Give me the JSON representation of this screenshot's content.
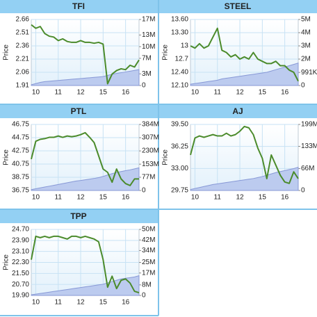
{
  "chart_data": [
    {
      "type": "line",
      "title": "TFI",
      "y_label": "Price",
      "grid": true,
      "x": [
        -0.2,
        0,
        0.2,
        0.4,
        0.6,
        0.8,
        1,
        1.2,
        1.4,
        1.6,
        1.8,
        2,
        2.2,
        2.4,
        2.6,
        2.8,
        3,
        3.2,
        3.4,
        3.6,
        3.8,
        4,
        4.2,
        4.4,
        4.6
      ],
      "xlim": [
        -0.2,
        4.6
      ],
      "xticks": [
        {
          "value": 0,
          "label": "10"
        },
        {
          "value": 1,
          "label": "11"
        },
        {
          "value": 2,
          "label": "12"
        },
        {
          "value": 3,
          "label": "15"
        },
        {
          "value": 4,
          "label": "16"
        }
      ],
      "ylim": [
        1.91,
        2.66
      ],
      "yticks": [
        1.91,
        2.06,
        2.21,
        2.36,
        2.51,
        2.66
      ],
      "y2lim": [
        0,
        17000000
      ],
      "y2ticks": [
        0,
        {
          "value": 3000000,
          "label": "3M"
        },
        {
          "value": 7000000,
          "label": "7M"
        },
        {
          "value": 10000000,
          "label": "10M"
        },
        {
          "value": 13000000,
          "label": "13M"
        },
        {
          "value": 17000000,
          "label": "17M"
        }
      ],
      "series": [
        {
          "color": "#4b8b2b",
          "values": [
            2.6,
            2.56,
            2.58,
            2.5,
            2.47,
            2.46,
            2.42,
            2.44,
            2.41,
            2.4,
            2.4,
            2.42,
            2.4,
            2.4,
            2.39,
            2.4,
            2.38,
            1.93,
            2.04,
            2.08,
            2.1,
            2.09,
            2.14,
            2.12,
            2.2
          ]
        },
        {
          "color": "#bccbef",
          "axis": "y2",
          "values": [
            200000,
            500000,
            800000,
            1000000,
            1100000,
            1200000,
            1300000,
            1400000,
            1500000,
            1600000,
            1700000,
            1800000,
            1900000,
            2000000,
            2100000,
            2200000,
            2300000,
            2600000,
            2900000,
            3100000,
            3300000,
            3500000,
            3700000,
            3900000,
            4100000
          ]
        }
      ]
    },
    {
      "type": "line",
      "title": "STEEL",
      "y_label": "Price",
      "grid": true,
      "x": [
        -0.2,
        0,
        0.2,
        0.4,
        0.6,
        0.8,
        1,
        1.2,
        1.4,
        1.6,
        1.8,
        2,
        2.2,
        2.4,
        2.6,
        2.8,
        3,
        3.2,
        3.4,
        3.6,
        3.8,
        4,
        4.2,
        4.4,
        4.6
      ],
      "xlim": [
        -0.2,
        4.6
      ],
      "xticks": [
        {
          "value": 0,
          "label": "10"
        },
        {
          "value": 1,
          "label": "11"
        },
        {
          "value": 2,
          "label": "12"
        },
        {
          "value": 3,
          "label": "15"
        },
        {
          "value": 4,
          "label": "16"
        }
      ],
      "ylim": [
        12.1,
        13.6
      ],
      "yticks": [
        {
          "value": 12.1,
          "label": "12.10"
        },
        {
          "value": 12.4,
          "label": "12.40"
        },
        12.7,
        13,
        {
          "value": 13.3,
          "label": "13.30"
        },
        {
          "value": 13.6,
          "label": "13.60"
        }
      ],
      "y2lim": [
        0,
        5000000
      ],
      "y2ticks": [
        0,
        {
          "value": 991000,
          "label": "991K"
        },
        {
          "value": 2000000,
          "label": "2M"
        },
        {
          "value": 3000000,
          "label": "3M"
        },
        {
          "value": 4000000,
          "label": "4M"
        },
        {
          "value": 5000000,
          "label": "5M"
        }
      ],
      "series": [
        {
          "color": "#4b8b2b",
          "values": [
            13.0,
            12.95,
            13.05,
            12.95,
            13.0,
            13.2,
            13.4,
            12.9,
            12.85,
            12.75,
            12.8,
            12.7,
            12.75,
            12.7,
            12.85,
            12.7,
            12.65,
            12.6,
            12.6,
            12.65,
            12.55,
            12.55,
            12.45,
            12.4,
            12.2
          ]
        },
        {
          "color": "#bccbef",
          "axis": "y2",
          "values": [
            100000,
            150000,
            200000,
            250000,
            300000,
            350000,
            400000,
            500000,
            550000,
            600000,
            650000,
            700000,
            750000,
            800000,
            850000,
            900000,
            950000,
            1000000,
            1100000,
            1200000,
            1300000,
            1400000,
            1500000,
            1600000,
            1700000
          ]
        }
      ]
    },
    {
      "type": "line",
      "title": "PTL",
      "y_label": "Price",
      "grid": true,
      "x": [
        -0.2,
        0,
        0.2,
        0.4,
        0.6,
        0.8,
        1,
        1.2,
        1.4,
        1.6,
        1.8,
        2,
        2.2,
        2.4,
        2.6,
        2.8,
        3,
        3.2,
        3.4,
        3.6,
        3.8,
        4,
        4.2,
        4.4,
        4.6
      ],
      "xlim": [
        -0.2,
        4.6
      ],
      "xticks": [
        {
          "value": 0,
          "label": "10"
        },
        {
          "value": 1,
          "label": "11"
        },
        {
          "value": 2,
          "label": "12"
        },
        {
          "value": 3,
          "label": "15"
        },
        {
          "value": 4,
          "label": "16"
        }
      ],
      "ylim": [
        36.75,
        46.75
      ],
      "yticks": [
        36.75,
        38.75,
        40.75,
        42.75,
        44.75,
        46.75
      ],
      "y2lim": [
        0,
        384000000
      ],
      "y2ticks": [
        0,
        {
          "value": 77000000,
          "label": "77M"
        },
        {
          "value": 153000000,
          "label": "153M"
        },
        {
          "value": 230000000,
          "label": "230M"
        },
        {
          "value": 307000000,
          "label": "307M"
        },
        {
          "value": 384000000,
          "label": "384M"
        }
      ],
      "series": [
        {
          "color": "#4b8b2b",
          "values": [
            41.5,
            44.2,
            44.5,
            44.6,
            44.8,
            44.8,
            45.0,
            44.8,
            45.0,
            44.9,
            45.0,
            45.2,
            45.5,
            44.8,
            44.0,
            42.0,
            40.0,
            39.5,
            38.0,
            40.0,
            38.5,
            37.8,
            37.5,
            38.5,
            38.5
          ]
        },
        {
          "color": "#bccbef",
          "axis": "y2",
          "values": [
            5000000,
            10000000,
            15000000,
            20000000,
            25000000,
            30000000,
            35000000,
            40000000,
            45000000,
            50000000,
            55000000,
            58000000,
            62000000,
            66000000,
            70000000,
            75000000,
            82000000,
            90000000,
            98000000,
            105000000,
            110000000,
            115000000,
            120000000,
            126000000,
            132000000
          ]
        }
      ]
    },
    {
      "type": "line",
      "title": "AJ",
      "y_label": "Price",
      "grid": true,
      "x": [
        -0.2,
        0,
        0.2,
        0.4,
        0.6,
        0.8,
        1,
        1.2,
        1.4,
        1.6,
        1.8,
        2,
        2.2,
        2.4,
        2.6,
        2.8,
        3,
        3.2,
        3.4,
        3.6,
        3.8,
        4,
        4.2,
        4.4,
        4.6
      ],
      "xlim": [
        -0.2,
        4.6
      ],
      "xticks": [
        {
          "value": 0,
          "label": "10"
        },
        {
          "value": 1,
          "label": "11"
        },
        {
          "value": 2,
          "label": "12"
        },
        {
          "value": 3,
          "label": "15"
        },
        {
          "value": 4,
          "label": "16"
        }
      ],
      "ylim": [
        29.75,
        39.5
      ],
      "yticks": [
        29.75,
        {
          "value": 33,
          "label": "33.00"
        },
        36.25,
        {
          "value": 39.5,
          "label": "39.50"
        }
      ],
      "y2lim": [
        0,
        199000000
      ],
      "y2ticks": [
        0,
        {
          "value": 66000000,
          "label": "66M"
        },
        {
          "value": 133000000,
          "label": "133M"
        },
        {
          "value": 199000000,
          "label": "199M"
        }
      ],
      "series": [
        {
          "color": "#4b8b2b",
          "values": [
            35.0,
            37.5,
            37.8,
            37.6,
            37.8,
            38.0,
            37.8,
            37.8,
            38.2,
            37.8,
            38.0,
            38.5,
            39.2,
            39.0,
            38.0,
            36.0,
            34.5,
            31.5,
            35.0,
            33.5,
            32.0,
            31.0,
            30.8,
            32.5,
            31.5
          ]
        },
        {
          "color": "#bccbef",
          "axis": "y2",
          "values": [
            3000000,
            6000000,
            9000000,
            12000000,
            15000000,
            18000000,
            20000000,
            22000000,
            24000000,
            26000000,
            28000000,
            30000000,
            32000000,
            34000000,
            36000000,
            39000000,
            42000000,
            46000000,
            50000000,
            54000000,
            57000000,
            60000000,
            63000000,
            66000000,
            70000000
          ]
        }
      ]
    },
    {
      "type": "line",
      "title": "TPP",
      "y_label": "Price",
      "grid": true,
      "x": [
        -0.2,
        0,
        0.2,
        0.4,
        0.6,
        0.8,
        1,
        1.2,
        1.4,
        1.6,
        1.8,
        2,
        2.2,
        2.4,
        2.6,
        2.8,
        3,
        3.2,
        3.4,
        3.6,
        3.8,
        4,
        4.2,
        4.4,
        4.6
      ],
      "xlim": [
        -0.2,
        4.6
      ],
      "xticks": [
        {
          "value": 0,
          "label": "10"
        },
        {
          "value": 1,
          "label": "11"
        },
        {
          "value": 2,
          "label": "12"
        },
        {
          "value": 3,
          "label": "15"
        },
        {
          "value": 4,
          "label": "16"
        }
      ],
      "ylim": [
        19.9,
        24.7
      ],
      "yticks": [
        {
          "value": 19.9,
          "label": "19.90"
        },
        {
          "value": 20.7,
          "label": "20.70"
        },
        {
          "value": 21.5,
          "label": "21.50"
        },
        {
          "value": 22.3,
          "label": "22.30"
        },
        {
          "value": 23.1,
          "label": "23.10"
        },
        {
          "value": 23.9,
          "label": "23.90"
        },
        {
          "value": 24.7,
          "label": "24.70"
        }
      ],
      "y2lim": [
        0,
        50000000
      ],
      "y2ticks": [
        0,
        {
          "value": 8000000,
          "label": "8M"
        },
        {
          "value": 17000000,
          "label": "17M"
        },
        {
          "value": 25000000,
          "label": "25M"
        },
        {
          "value": 34000000,
          "label": "34M"
        },
        {
          "value": 42000000,
          "label": "42M"
        },
        {
          "value": 50000000,
          "label": "50M"
        }
      ],
      "series": [
        {
          "color": "#4b8b2b",
          "values": [
            22.5,
            24.2,
            24.1,
            24.2,
            24.1,
            24.2,
            24.2,
            24.1,
            24.0,
            24.2,
            24.2,
            24.1,
            24.2,
            24.1,
            24.0,
            23.8,
            22.5,
            20.5,
            21.3,
            20.4,
            21.0,
            21.1,
            20.8,
            20.2,
            20.1
          ]
        },
        {
          "color": "#bccbef",
          "axis": "y2",
          "values": [
            500000,
            1000000,
            1500000,
            2000000,
            2500000,
            3000000,
            3500000,
            4000000,
            4500000,
            5000000,
            5500000,
            6000000,
            6500000,
            7000000,
            7500000,
            8000000,
            8500000,
            9500000,
            10500000,
            11500000,
            12500000,
            13000000,
            13500000,
            14000000,
            15000000
          ]
        }
      ]
    }
  ]
}
